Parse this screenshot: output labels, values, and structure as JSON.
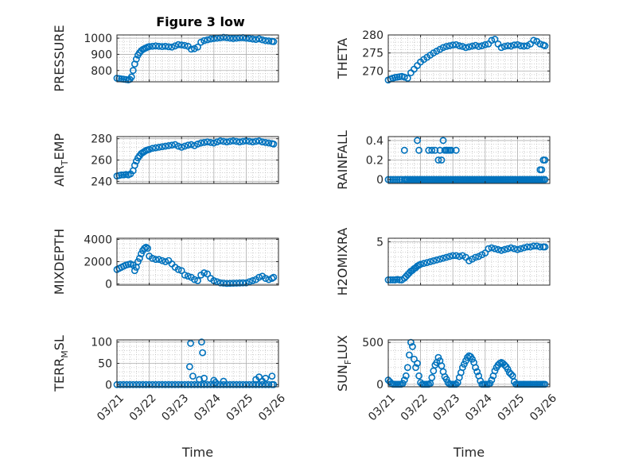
{
  "figure": {
    "title": "Figure 3 low",
    "colors": {
      "marker": "#0072BD",
      "axis": "#262626",
      "grid": "#b0b0b0",
      "background": "#ffffff"
    }
  },
  "chart_data": [
    {
      "id": "pressure",
      "type": "scatter",
      "marker": "circle-open",
      "title": "Figure 3 low",
      "ylabel": "PRESSURE",
      "ylim": [
        730,
        1020
      ],
      "yticks": [
        800,
        900,
        1000
      ],
      "ytick_labels": [
        "800",
        "900",
        "1000"
      ],
      "xlim": [
        0,
        5
      ],
      "xticks": [
        0,
        1,
        2,
        3,
        4,
        5
      ],
      "xtick_labels": [],
      "xlabel": "",
      "grid": true,
      "x": [
        0,
        0.07,
        0.14,
        0.21,
        0.28,
        0.35,
        0.4,
        0.45,
        0.5,
        0.55,
        0.6,
        0.65,
        0.7,
        0.75,
        0.8,
        0.85,
        0.9,
        0.95,
        1.0,
        1.1,
        1.2,
        1.3,
        1.4,
        1.5,
        1.6,
        1.7,
        1.8,
        1.9,
        2.0,
        2.1,
        2.2,
        2.3,
        2.4,
        2.5,
        2.6,
        2.7,
        2.8,
        2.9,
        3.0,
        3.1,
        3.2,
        3.3,
        3.4,
        3.5,
        3.6,
        3.7,
        3.8,
        3.9,
        4.0,
        4.1,
        4.2,
        4.3,
        4.4,
        4.5,
        4.6,
        4.7,
        4.8,
        4.85
      ],
      "y": [
        752,
        750,
        748,
        746,
        744,
        742,
        745,
        760,
        800,
        840,
        870,
        895,
        910,
        922,
        930,
        935,
        940,
        945,
        948,
        950,
        952,
        950,
        948,
        950,
        947,
        945,
        952,
        960,
        958,
        955,
        950,
        932,
        935,
        945,
        975,
        985,
        990,
        995,
        998,
        1000,
        1002,
        1005,
        1003,
        1000,
        998,
        1000,
        1002,
        1003,
        1000,
        998,
        995,
        992,
        996,
        990,
        985,
        983,
        980,
        979
      ]
    },
    {
      "id": "theta",
      "type": "scatter",
      "marker": "circle-open",
      "ylabel": "THETA",
      "ylim": [
        267,
        280
      ],
      "yticks": [
        270,
        275,
        280
      ],
      "ytick_labels": [
        "270",
        "275",
        "280"
      ],
      "xlim": [
        0,
        5
      ],
      "xticks": [
        0,
        1,
        2,
        3,
        4,
        5
      ],
      "xtick_labels": [],
      "xlabel": "",
      "grid": true,
      "x": [
        0,
        0.07,
        0.14,
        0.21,
        0.28,
        0.35,
        0.42,
        0.5,
        0.6,
        0.7,
        0.8,
        0.9,
        1.0,
        1.1,
        1.2,
        1.3,
        1.4,
        1.5,
        1.6,
        1.7,
        1.8,
        1.9,
        2.0,
        2.1,
        2.2,
        2.3,
        2.4,
        2.5,
        2.6,
        2.7,
        2.8,
        2.9,
        3.0,
        3.1,
        3.2,
        3.3,
        3.4,
        3.5,
        3.6,
        3.7,
        3.8,
        3.9,
        4.0,
        4.1,
        4.2,
        4.3,
        4.4,
        4.5,
        4.6,
        4.7,
        4.8,
        4.85
      ],
      "y": [
        267.5,
        267.8,
        268.0,
        268.2,
        268.3,
        268.4,
        268.5,
        268.3,
        268.0,
        269.5,
        270.5,
        271.5,
        272.5,
        273.2,
        273.8,
        274.4,
        275.0,
        275.5,
        276.0,
        276.5,
        276.8,
        277.0,
        277.2,
        277.3,
        277.0,
        276.8,
        276.5,
        276.7,
        276.9,
        277.1,
        276.8,
        277.0,
        277.3,
        277.5,
        278.5,
        278.8,
        277.5,
        276.5,
        276.8,
        277.0,
        276.9,
        277.2,
        277.3,
        277.0,
        276.9,
        277.0,
        277.5,
        278.5,
        278.2,
        277.5,
        277.2,
        277.0
      ]
    },
    {
      "id": "air_temp",
      "type": "scatter",
      "marker": "circle-open",
      "ylabel": "AIR",
      "ylabel_sub": "T",
      "ylabel_rest": "EMP",
      "ylim": [
        238,
        282
      ],
      "yticks": [
        240,
        260,
        280
      ],
      "ytick_labels": [
        "240",
        "260",
        "280"
      ],
      "xlim": [
        0,
        5
      ],
      "xticks": [
        0,
        1,
        2,
        3,
        4,
        5
      ],
      "xtick_labels": [],
      "xlabel": "",
      "grid": true,
      "x": [
        0,
        0.07,
        0.14,
        0.21,
        0.28,
        0.35,
        0.42,
        0.5,
        0.55,
        0.6,
        0.65,
        0.7,
        0.75,
        0.8,
        0.85,
        0.9,
        0.95,
        1.0,
        1.1,
        1.2,
        1.3,
        1.4,
        1.5,
        1.6,
        1.7,
        1.8,
        1.9,
        2.0,
        2.1,
        2.2,
        2.3,
        2.4,
        2.5,
        2.6,
        2.7,
        2.8,
        2.9,
        3.0,
        3.1,
        3.2,
        3.3,
        3.4,
        3.5,
        3.6,
        3.7,
        3.8,
        3.9,
        4.0,
        4.1,
        4.2,
        4.3,
        4.4,
        4.5,
        4.6,
        4.7,
        4.8,
        4.85
      ],
      "y": [
        245,
        245.5,
        246,
        246,
        246.5,
        246,
        247,
        250,
        255,
        259,
        262,
        264,
        266,
        267,
        268,
        269,
        269.5,
        270,
        271,
        271.5,
        272,
        272.5,
        273,
        273.5,
        274,
        274.5,
        273,
        272,
        273,
        274,
        274.5,
        273.5,
        275,
        276,
        276.5,
        277,
        276.5,
        276,
        277,
        278,
        277.5,
        277,
        277.5,
        278,
        277.5,
        277,
        277.5,
        278,
        277.5,
        277,
        277.5,
        278,
        277,
        276.5,
        276,
        275.5,
        275
      ]
    },
    {
      "id": "rainfall",
      "type": "scatter",
      "marker": "circle-open",
      "ylabel": "RAINFALL",
      "ylim": [
        -0.04,
        0.44
      ],
      "yticks": [
        0,
        0.2,
        0.4
      ],
      "ytick_labels": [
        "0",
        "0.2",
        "0.4"
      ],
      "xlim": [
        0,
        5
      ],
      "xticks": [
        0,
        1,
        2,
        3,
        4,
        5
      ],
      "xtick_labels": [],
      "xlabel": "",
      "grid": true,
      "x": [
        0,
        0.07,
        0.14,
        0.21,
        0.28,
        0.35,
        0.42,
        0.5,
        0.55,
        0.6,
        0.65,
        0.7,
        0.75,
        0.8,
        0.85,
        0.9,
        0.95,
        1.0,
        1.05,
        1.1,
        1.15,
        1.2,
        1.25,
        1.3,
        1.35,
        1.4,
        1.45,
        1.5,
        1.55,
        1.6,
        1.65,
        1.7,
        1.75,
        1.8,
        1.85,
        1.9,
        1.95,
        2.0,
        2.05,
        2.1,
        2.15,
        2.2,
        2.25,
        2.3,
        2.35,
        2.4,
        2.45,
        2.5,
        2.55,
        2.6,
        2.65,
        2.7,
        2.75,
        2.8,
        2.85,
        2.9,
        2.95,
        3.0,
        3.05,
        3.1,
        3.15,
        3.2,
        3.25,
        3.3,
        3.35,
        3.4,
        3.45,
        3.5,
        3.55,
        3.6,
        3.65,
        3.7,
        3.75,
        3.8,
        3.85,
        3.9,
        3.95,
        4.0,
        4.05,
        4.1,
        4.15,
        4.2,
        4.25,
        4.3,
        4.35,
        4.4,
        4.45,
        4.5,
        4.55,
        4.6,
        4.65,
        4.7,
        4.75,
        4.8,
        4.85,
        0.5,
        0.9,
        0.95,
        1.25,
        1.35,
        1.45,
        1.55,
        1.6,
        1.65,
        1.7,
        1.75,
        1.8,
        1.85,
        1.9,
        1.95,
        2.1,
        4.7,
        4.75,
        4.8,
        4.85
      ],
      "y": [
        0,
        0,
        0,
        0,
        0,
        0,
        0,
        0,
        0,
        0,
        0,
        0,
        0,
        0,
        0,
        0,
        0,
        0,
        0,
        0,
        0,
        0,
        0,
        0,
        0,
        0,
        0,
        0,
        0,
        0,
        0,
        0,
        0,
        0,
        0,
        0,
        0,
        0,
        0,
        0,
        0,
        0,
        0,
        0,
        0,
        0,
        0,
        0,
        0,
        0,
        0,
        0,
        0,
        0,
        0,
        0,
        0,
        0,
        0,
        0,
        0,
        0,
        0,
        0,
        0,
        0,
        0,
        0,
        0,
        0,
        0,
        0,
        0,
        0,
        0,
        0,
        0,
        0,
        0,
        0,
        0,
        0,
        0,
        0,
        0,
        0,
        0,
        0,
        0,
        0,
        0,
        0,
        0,
        0,
        0,
        0.3,
        0.4,
        0.3,
        0.3,
        0.3,
        0.3,
        0.2,
        0.3,
        0.2,
        0.4,
        0.3,
        0.3,
        0.3,
        0.3,
        0.3,
        0.3,
        0.1,
        0.1,
        0.2,
        0.2
      ]
    },
    {
      "id": "mixdepth",
      "type": "scatter",
      "marker": "circle-open",
      "ylabel": "MIXDEPTH",
      "ylim": [
        -100,
        4100
      ],
      "yticks": [
        0,
        2000,
        4000
      ],
      "ytick_labels": [
        "0",
        "2000",
        "4000"
      ],
      "xlim": [
        0,
        5
      ],
      "xticks": [
        0,
        1,
        2,
        3,
        4,
        5
      ],
      "xtick_labels": [],
      "xlabel": "",
      "grid": true,
      "x": [
        0,
        0.07,
        0.14,
        0.21,
        0.28,
        0.35,
        0.42,
        0.5,
        0.55,
        0.6,
        0.65,
        0.7,
        0.75,
        0.8,
        0.85,
        0.9,
        0.95,
        1.0,
        1.1,
        1.2,
        1.3,
        1.4,
        1.5,
        1.6,
        1.7,
        1.8,
        1.9,
        2.0,
        2.1,
        2.2,
        2.3,
        2.4,
        2.5,
        2.6,
        2.7,
        2.8,
        2.9,
        3.0,
        3.1,
        3.2,
        3.3,
        3.4,
        3.5,
        3.6,
        3.7,
        3.8,
        3.9,
        4.0,
        4.1,
        4.2,
        4.3,
        4.4,
        4.5,
        4.6,
        4.7,
        4.8,
        4.85
      ],
      "y": [
        1300,
        1400,
        1500,
        1600,
        1700,
        1750,
        1800,
        1700,
        1200,
        1500,
        2000,
        2300,
        2700,
        3000,
        3200,
        3300,
        3200,
        2500,
        2300,
        2200,
        2200,
        2100,
        2000,
        2100,
        1800,
        1500,
        1300,
        1200,
        800,
        700,
        600,
        400,
        300,
        800,
        1000,
        900,
        500,
        300,
        200,
        100,
        80,
        50,
        60,
        70,
        80,
        90,
        100,
        100,
        200,
        300,
        400,
        600,
        700,
        500,
        400,
        500,
        600
      ]
    },
    {
      "id": "h2omixra",
      "type": "scatter",
      "marker": "circle-open",
      "ylabel": "H2OMIXRA",
      "ylim": [
        0,
        5.4
      ],
      "yticks": [
        5
      ],
      "ytick_labels": [
        "5"
      ],
      "xlim": [
        0,
        5
      ],
      "xticks": [
        0,
        1,
        2,
        3,
        4,
        5
      ],
      "xtick_labels": [],
      "xlabel": "",
      "grid": true,
      "x": [
        0,
        0.07,
        0.14,
        0.21,
        0.28,
        0.35,
        0.42,
        0.5,
        0.55,
        0.6,
        0.65,
        0.7,
        0.75,
        0.8,
        0.85,
        0.9,
        0.95,
        1.0,
        1.1,
        1.2,
        1.3,
        1.4,
        1.5,
        1.6,
        1.7,
        1.8,
        1.9,
        2.0,
        2.1,
        2.2,
        2.3,
        2.4,
        2.5,
        2.6,
        2.7,
        2.8,
        2.9,
        3.0,
        3.1,
        3.2,
        3.3,
        3.4,
        3.5,
        3.6,
        3.7,
        3.8,
        3.9,
        4.0,
        4.1,
        4.2,
        4.3,
        4.4,
        4.5,
        4.6,
        4.7,
        4.8,
        4.85
      ],
      "y": [
        0.6,
        0.6,
        0.6,
        0.6,
        0.65,
        0.6,
        0.6,
        0.8,
        1.0,
        1.2,
        1.4,
        1.6,
        1.7,
        1.9,
        2.0,
        2.2,
        2.3,
        2.4,
        2.5,
        2.6,
        2.7,
        2.8,
        2.9,
        3.0,
        3.1,
        3.2,
        3.3,
        3.4,
        3.4,
        3.3,
        3.4,
        3.2,
        2.8,
        3.0,
        3.2,
        3.3,
        3.5,
        3.7,
        4.2,
        4.3,
        4.2,
        4.1,
        4.0,
        4.1,
        4.2,
        4.3,
        4.2,
        4.1,
        4.2,
        4.3,
        4.4,
        4.4,
        4.5,
        4.5,
        4.4,
        4.4,
        4.4
      ]
    },
    {
      "id": "terr_msl",
      "type": "scatter",
      "marker": "circle-open",
      "ylabel": "TERR",
      "ylabel_sub": "M",
      "ylabel_rest": "SL",
      "ylim": [
        -5,
        105
      ],
      "yticks": [
        0,
        50,
        100
      ],
      "ytick_labels": [
        "0",
        "50",
        "100"
      ],
      "xlim": [
        0,
        5
      ],
      "xticks": [
        0,
        1,
        2,
        3,
        4,
        5
      ],
      "xtick_labels": [
        "03/21",
        "03/22",
        "03/23",
        "03/24",
        "03/25",
        "03/26"
      ],
      "xlabel": "Time",
      "grid": true,
      "x": [
        0,
        0.1,
        0.2,
        0.3,
        0.4,
        0.5,
        0.6,
        0.7,
        0.8,
        0.9,
        1.0,
        1.1,
        1.2,
        1.3,
        1.4,
        1.5,
        1.6,
        1.7,
        1.8,
        1.9,
        2.0,
        2.1,
        2.2,
        2.3,
        2.4,
        2.5,
        2.6,
        2.7,
        2.8,
        2.9,
        3.0,
        3.1,
        3.2,
        3.3,
        3.4,
        3.5,
        3.6,
        3.7,
        3.8,
        3.9,
        4.0,
        4.1,
        4.2,
        4.3,
        4.4,
        4.5,
        4.6,
        4.7,
        4.8,
        4.85,
        2.25,
        2.28,
        2.35,
        2.55,
        2.62,
        2.65,
        2.7,
        3.0,
        3.05,
        3.3,
        4.3,
        4.4,
        4.5,
        4.6,
        4.8
      ],
      "y": [
        0,
        0,
        0,
        0,
        0,
        0,
        0,
        0,
        0,
        0,
        0,
        0,
        0,
        0,
        0,
        0,
        0,
        0,
        0,
        0,
        0,
        0,
        0,
        0,
        0,
        0,
        0,
        0,
        0,
        0,
        0,
        0,
        0,
        0,
        0,
        0,
        0,
        0,
        0,
        0,
        0,
        0,
        0,
        0,
        0,
        0,
        0,
        0,
        0,
        0,
        42,
        97,
        20,
        12,
        100,
        75,
        15,
        10,
        5,
        8,
        12,
        18,
        8,
        15,
        20
      ]
    },
    {
      "id": "sun_flux",
      "type": "scatter",
      "marker": "circle-open",
      "ylabel": "SUN",
      "ylabel_sub": "F",
      "ylabel_rest": "LUX",
      "ylim": [
        -30,
        530
      ],
      "yticks": [
        0,
        500
      ],
      "ytick_labels": [
        "0",
        "500"
      ],
      "xlim": [
        0,
        5
      ],
      "xticks": [
        0,
        1,
        2,
        3,
        4,
        5
      ],
      "xtick_labels": [
        "03/21",
        "03/22",
        "03/23",
        "03/24",
        "03/25",
        "03/26"
      ],
      "xlabel": "Time",
      "grid": true,
      "x": [
        0,
        0.05,
        0.1,
        0.15,
        0.2,
        0.25,
        0.3,
        0.35,
        0.4,
        0.45,
        0.5,
        0.55,
        0.6,
        0.65,
        0.7,
        0.75,
        0.8,
        0.85,
        0.9,
        0.95,
        1.0,
        1.05,
        1.1,
        1.15,
        1.2,
        1.25,
        1.3,
        1.35,
        1.4,
        1.45,
        1.5,
        1.55,
        1.6,
        1.65,
        1.7,
        1.75,
        1.8,
        1.85,
        1.9,
        1.95,
        2.0,
        2.05,
        2.1,
        2.15,
        2.2,
        2.25,
        2.3,
        2.35,
        2.4,
        2.45,
        2.5,
        2.55,
        2.6,
        2.65,
        2.7,
        2.75,
        2.8,
        2.85,
        2.9,
        2.95,
        3.0,
        3.05,
        3.1,
        3.15,
        3.2,
        3.25,
        3.3,
        3.35,
        3.4,
        3.45,
        3.5,
        3.55,
        3.6,
        3.65,
        3.7,
        3.75,
        3.8,
        3.85,
        3.9,
        3.95,
        4.0,
        4.05,
        4.1,
        4.15,
        4.2,
        4.25,
        4.3,
        4.35,
        4.4,
        4.45,
        4.5,
        4.55,
        4.6,
        4.65,
        4.7,
        4.75,
        4.8,
        4.85
      ],
      "y": [
        50,
        30,
        10,
        0,
        0,
        0,
        0,
        0,
        0,
        10,
        50,
        100,
        200,
        350,
        500,
        450,
        300,
        200,
        250,
        100,
        20,
        0,
        0,
        0,
        0,
        0,
        10,
        80,
        160,
        230,
        260,
        320,
        280,
        220,
        150,
        90,
        60,
        20,
        0,
        0,
        0,
        0,
        0,
        20,
        80,
        140,
        200,
        240,
        280,
        320,
        340,
        330,
        300,
        260,
        200,
        150,
        100,
        40,
        0,
        0,
        0,
        0,
        0,
        10,
        50,
        100,
        160,
        200,
        230,
        250,
        260,
        250,
        230,
        210,
        180,
        140,
        120,
        100,
        30,
        0,
        0,
        0,
        0,
        0,
        0,
        0,
        0,
        0,
        0,
        0,
        0,
        0,
        0,
        0,
        0,
        0,
        0,
        0
      ]
    }
  ]
}
